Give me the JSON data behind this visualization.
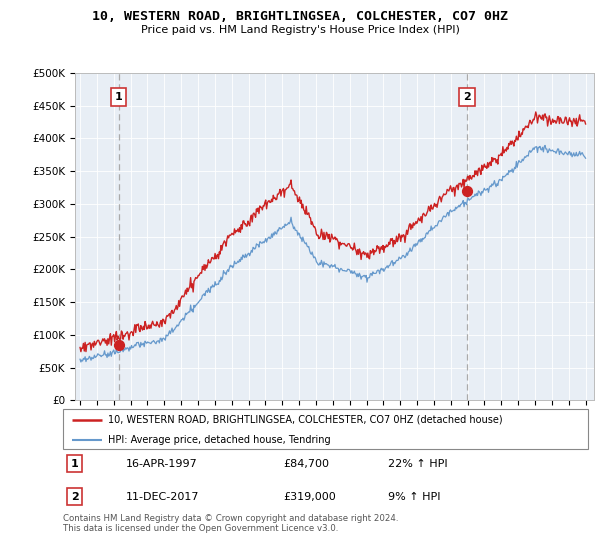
{
  "title": "10, WESTERN ROAD, BRIGHTLINGSEA, COLCHESTER, CO7 0HZ",
  "subtitle": "Price paid vs. HM Land Registry's House Price Index (HPI)",
  "legend_line1": "10, WESTERN ROAD, BRIGHTLINGSEA, COLCHESTER, CO7 0HZ (detached house)",
  "legend_line2": "HPI: Average price, detached house, Tendring",
  "transaction1_date": "16-APR-1997",
  "transaction1_price": "£84,700",
  "transaction1_hpi": "22% ↑ HPI",
  "transaction1_x": 1997.29,
  "transaction1_y": 84700,
  "transaction2_date": "11-DEC-2017",
  "transaction2_price": "£319,000",
  "transaction2_hpi": "9% ↑ HPI",
  "transaction2_x": 2017.95,
  "transaction2_y": 319000,
  "footer": "Contains HM Land Registry data © Crown copyright and database right 2024.\nThis data is licensed under the Open Government Licence v3.0.",
  "yticks": [
    0,
    50000,
    100000,
    150000,
    200000,
    250000,
    300000,
    350000,
    400000,
    450000,
    500000
  ],
  "xmin": 1994.7,
  "xmax": 2025.5,
  "ymin": 0,
  "ymax": 500000,
  "red_color": "#cc2222",
  "blue_color": "#6699cc",
  "dashed_color": "#aaaaaa",
  "plot_bg_color": "#e8eef5",
  "background_color": "#ffffff",
  "grid_color": "#ffffff"
}
